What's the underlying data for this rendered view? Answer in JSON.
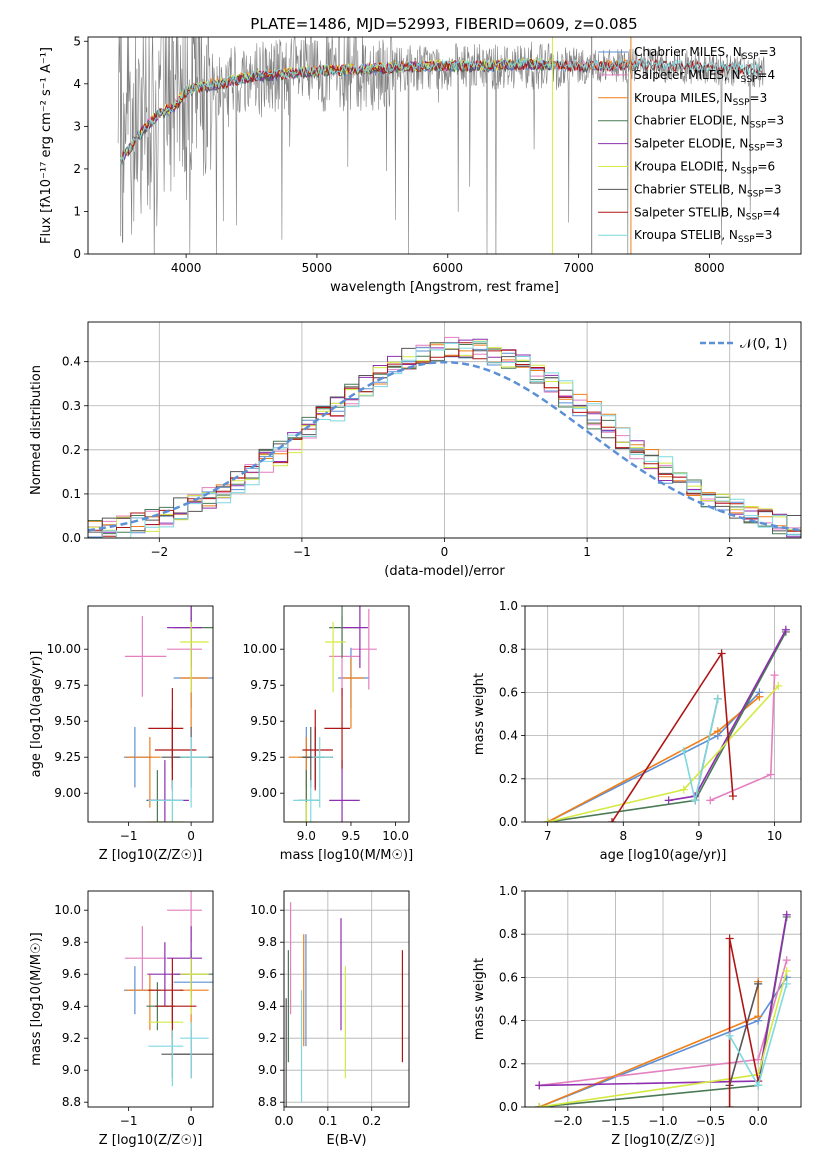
{
  "title": "PLATE=1486, MJD=52993, FIBERID=0609, z=0.085",
  "colors": {
    "chabrier_miles": "#5b8fd6",
    "salpeter_miles": "#e47fc0",
    "kroupa_miles": "#ee7f1a",
    "chabrier_elodie": "#4a7a55",
    "salpeter_elodie": "#8e2fb0",
    "kroupa_elodie": "#d4ea42",
    "chabrier_stelib": "#555555",
    "salpeter_stelib": "#b01515",
    "kroupa_stelib": "#7fd8e0",
    "data_spectrum": "#7f7f7f",
    "normal_curve": "#5b8fd6"
  },
  "legend_spectrum": [
    {
      "label": "Chabrier MILES, N",
      "sub": "SSP",
      "tail": "=3",
      "color": "#5b8fd6"
    },
    {
      "label": "Salpeter MILES, N",
      "sub": "SSP",
      "tail": "=4",
      "color": "#e47fc0"
    },
    {
      "label": "Kroupa MILES, N",
      "sub": "SSP",
      "tail": "=3",
      "color": "#ee7f1a"
    },
    {
      "label": "Chabrier ELODIE, N",
      "sub": "SSP",
      "tail": "=3",
      "color": "#4a7a55"
    },
    {
      "label": "Salpeter ELODIE, N",
      "sub": "SSP",
      "tail": "=3",
      "color": "#8e2fb0"
    },
    {
      "label": "Kroupa ELODIE, N",
      "sub": "SSP",
      "tail": "=6",
      "color": "#d4ea42"
    },
    {
      "label": "Chabrier STELIB, N",
      "sub": "SSP",
      "tail": "=3",
      "color": "#555555"
    },
    {
      "label": "Salpeter STELIB, N",
      "sub": "SSP",
      "tail": "=4",
      "color": "#b01515"
    },
    {
      "label": "Kroupa STELIB, N",
      "sub": "SSP",
      "tail": "=3",
      "color": "#7fd8e0"
    }
  ],
  "legend_hist": {
    "label": "𝒩(0, 1)"
  },
  "chart_data": [
    {
      "id": "spectrum",
      "type": "line",
      "title": "PLATE=1486, MJD=52993, FIBERID=0609, z=0.085",
      "xlabel": "wavelength [Angstrom, rest frame]",
      "ylabel": "Flux [fλ10⁻¹⁷ erg cm⁻² s⁻¹ A⁻¹]",
      "xlim": [
        3250,
        8700
      ],
      "ylim": [
        0,
        5.1
      ],
      "xticks": [
        4000,
        5000,
        6000,
        7000,
        8000
      ],
      "yticks": [
        0,
        1,
        2,
        3,
        4,
        5
      ],
      "grid": false,
      "legend": "right",
      "model_continuum": {
        "x": [
          3500,
          3600,
          3700,
          3800,
          3900,
          4000,
          4100,
          4300,
          4500,
          4700,
          4900,
          5100,
          5300,
          5500,
          5800,
          6000,
          6300,
          6600,
          6900,
          7200,
          7500,
          7800,
          8100,
          8400
        ],
        "y": [
          2.2,
          2.6,
          3.0,
          3.3,
          3.4,
          3.8,
          3.9,
          4.0,
          4.15,
          4.2,
          4.25,
          4.3,
          4.3,
          4.35,
          4.4,
          4.4,
          4.4,
          4.45,
          4.4,
          4.4,
          4.45,
          4.4,
          4.35,
          4.3
        ]
      },
      "series": [
        {
          "name": "Chabrier MILES, NSSP=3",
          "x_range": [
            3500,
            7400
          ]
        },
        {
          "name": "Salpeter MILES, NSSP=4",
          "x_range": [
            3500,
            7400
          ]
        },
        {
          "name": "Kroupa MILES, NSSP=3",
          "x_range": [
            3500,
            7400
          ]
        },
        {
          "name": "Chabrier ELODIE, NSSP=3",
          "x_range": [
            3500,
            6800
          ]
        },
        {
          "name": "Salpeter ELODIE, NSSP=3",
          "x_range": [
            3500,
            6800
          ]
        },
        {
          "name": "Kroupa ELODIE, NSSP=6",
          "x_range": [
            3500,
            6800
          ]
        },
        {
          "name": "Chabrier STELIB, NSSP=3",
          "x_range": [
            3500,
            8400
          ]
        },
        {
          "name": "Salpeter STELIB, NSSP=4",
          "x_range": [
            3500,
            8400
          ]
        },
        {
          "name": "Kroupa STELIB, NSSP=3",
          "x_range": [
            3500,
            8400
          ]
        }
      ]
    },
    {
      "id": "residuals",
      "type": "line",
      "xlabel": "(data-model)/error",
      "ylabel": "Normed distribution",
      "xlim": [
        -2.5,
        2.5
      ],
      "ylim": [
        0,
        0.49
      ],
      "xticks": [
        -2,
        -1,
        0,
        1,
        2
      ],
      "yticks": [
        0.0,
        0.1,
        0.2,
        0.3,
        0.4
      ],
      "grid": true,
      "legend": "top-right",
      "bin_width": 0.1
    },
    {
      "id": "age_vs_Z",
      "type": "scatter",
      "xlabel": "Z [log10(Z/Z☉)]",
      "ylabel": "age  [log10(age/yr)]",
      "xlim": [
        -1.65,
        0.35
      ],
      "ylim": [
        8.8,
        10.3
      ],
      "xticks": [
        -1,
        0
      ],
      "yticks": [
        9.0,
        9.25,
        9.5,
        9.75,
        10.0
      ],
      "grid": false
    },
    {
      "id": "age_vs_mass",
      "type": "scatter",
      "xlabel": "mass [log10(M/M☉)]",
      "ylabel": "",
      "xlim": [
        8.75,
        10.15
      ],
      "ylim": [
        8.8,
        10.3
      ],
      "xticks": [
        9.0,
        9.5,
        10.0
      ],
      "yticks": [
        9.0,
        9.25,
        9.5,
        9.75,
        10.0
      ],
      "grid": false
    },
    {
      "id": "massweight_vs_age",
      "type": "line",
      "xlabel": "age  [log10(age/yr)]",
      "ylabel": "mass weight",
      "xlim": [
        6.7,
        10.35
      ],
      "ylim": [
        0,
        1.0
      ],
      "xticks": [
        7,
        8,
        9,
        10
      ],
      "yticks": [
        0.0,
        0.2,
        0.4,
        0.6,
        0.8,
        1.0
      ],
      "grid": true
    },
    {
      "id": "mass_vs_Z",
      "type": "scatter",
      "xlabel": "Z [log10(Z/Z☉)]",
      "ylabel": "mass [log10(M/M☉)]",
      "xlim": [
        -1.65,
        0.35
      ],
      "ylim": [
        8.77,
        10.12
      ],
      "xticks": [
        -1,
        0
      ],
      "yticks": [
        8.8,
        9.0,
        9.2,
        9.4,
        9.6,
        9.8,
        10.0
      ],
      "grid": false
    },
    {
      "id": "mass_vs_EBV",
      "type": "scatter",
      "xlabel": "E(B-V)",
      "ylabel": "",
      "xlim": [
        0,
        0.285
      ],
      "ylim": [
        8.77,
        10.12
      ],
      "xticks": [
        0.0,
        0.1,
        0.2
      ],
      "yticks": [
        8.8,
        9.0,
        9.2,
        9.4,
        9.6,
        9.8,
        10.0
      ],
      "grid": true
    },
    {
      "id": "massweight_vs_Z",
      "type": "line",
      "xlabel": "Z [log10(Z/Z☉)]",
      "ylabel": "mass weight",
      "xlim": [
        -2.45,
        0.45
      ],
      "ylim": [
        0,
        1.0
      ],
      "xticks": [
        -2.0,
        -1.5,
        -1.0,
        -0.5,
        0.0
      ],
      "yticks": [
        0.0,
        0.2,
        0.4,
        0.6,
        0.8,
        1.0
      ],
      "grid": true
    }
  ],
  "models": [
    {
      "key": "chabrier_miles",
      "color": "#5b8fd6",
      "age": [
        7.0,
        9.25,
        9.8
      ],
      "Z": [
        -2.3,
        0.0,
        0.3
      ],
      "w": [
        0.0,
        0.4,
        0.6
      ],
      "mass": [
        9.0,
        9.5,
        9.55
      ],
      "ebv": 0.05
    },
    {
      "key": "salpeter_miles",
      "color": "#e47fc0",
      "age": [
        9.15,
        9.95,
        10.0
      ],
      "Z": [
        -2.3,
        0.0,
        0.3
      ],
      "w": [
        0.1,
        0.22,
        0.68
      ],
      "mass": [
        9.4,
        9.7,
        10.0
      ],
      "ebv": 0.015
    },
    {
      "key": "kroupa_miles",
      "color": "#ee7f1a",
      "age": [
        7.0,
        9.25,
        9.8
      ],
      "Z": [
        -2.3,
        0.0,
        0.0
      ],
      "w": [
        0.0,
        0.42,
        0.58
      ],
      "mass": [
        9.0,
        9.5,
        9.5
      ],
      "ebv": 0.045
    },
    {
      "key": "chabrier_elodie",
      "color": "#4a7a55",
      "age": [
        7.0,
        8.95,
        10.15
      ],
      "Z": [
        -2.3,
        0.0,
        0.3
      ],
      "w": [
        0.0,
        0.1,
        0.88
      ],
      "mass": [
        9.0,
        9.4,
        9.6
      ],
      "ebv": 0.01
    },
    {
      "key": "salpeter_elodie",
      "color": "#8e2fb0",
      "age": [
        8.6,
        8.95,
        10.15
      ],
      "Z": [
        -2.3,
        0.0,
        0.3
      ],
      "w": [
        0.1,
        0.12,
        0.89
      ],
      "mass": [
        9.4,
        9.6,
        9.7
      ],
      "ebv": 0.13
    },
    {
      "key": "kroupa_elodie",
      "color": "#d4ea42",
      "age": [
        7.0,
        8.8,
        10.05
      ],
      "Z": [
        -2.3,
        0.0,
        0.3
      ],
      "w": [
        0.0,
        0.15,
        0.63
      ],
      "mass": [
        9.0,
        9.3,
        9.6
      ],
      "ebv": 0.14
    },
    {
      "key": "chabrier_stelib",
      "color": "#555555",
      "age": [
        8.95,
        9.25
      ],
      "Z": [
        -0.3,
        0.0
      ],
      "w": [
        0.1,
        0.57
      ],
      "mass": [
        9.05,
        9.1
      ],
      "ebv": 0.005
    },
    {
      "key": "salpeter_stelib",
      "color": "#b01515",
      "age": [
        7.85,
        9.3,
        9.45
      ],
      "Z": [
        -0.3,
        -0.3,
        0.0
      ],
      "w": [
        0.0,
        0.78,
        0.12
      ],
      "mass": [
        9.1,
        9.4,
        9.5
      ],
      "ebv": 0.27
    },
    {
      "key": "kroupa_stelib",
      "color": "#7fd8e0",
      "age": [
        8.8,
        8.95,
        9.25
      ],
      "Z": [
        -0.3,
        0.0,
        0.3
      ],
      "w": [
        0.33,
        0.1,
        0.57
      ],
      "mass": [
        9.05,
        9.15,
        9.2
      ],
      "ebv": 0.04
    }
  ]
}
